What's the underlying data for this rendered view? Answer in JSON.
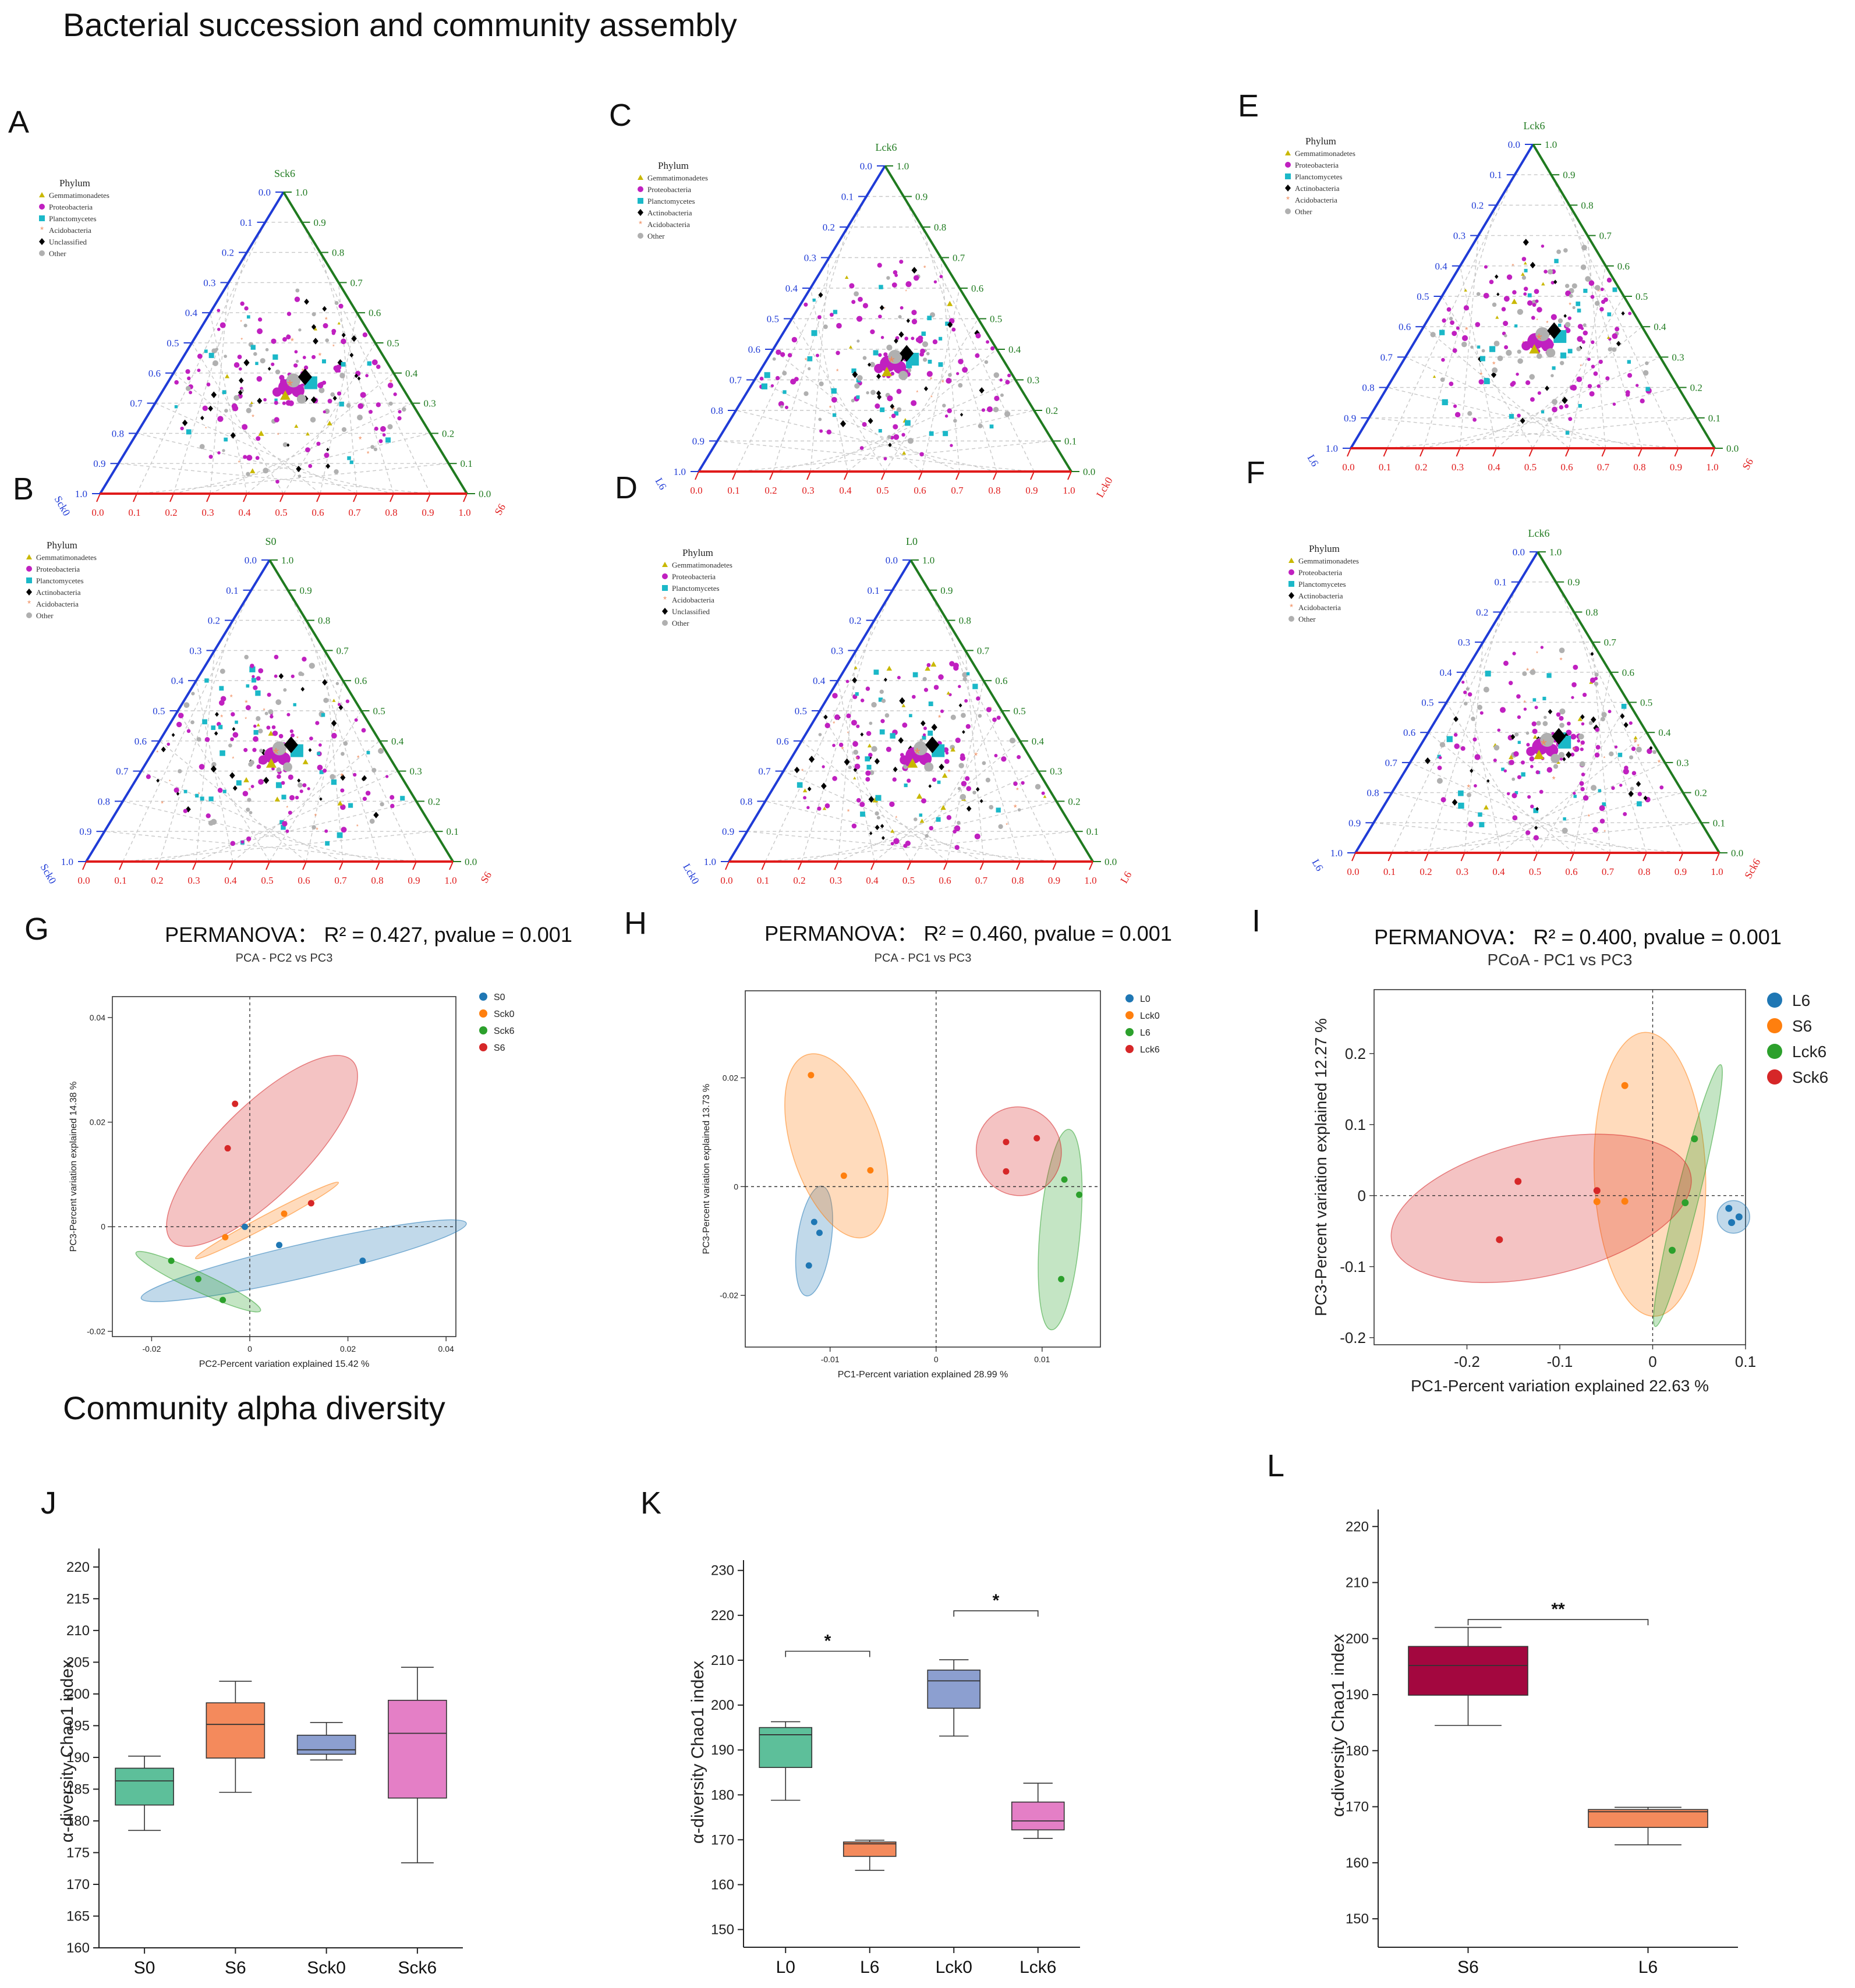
{
  "colors": {
    "blue_axis": "#1f3bd6",
    "green_axis": "#1f7a1f",
    "red_axis": "#e01b1b",
    "phylum": {
      "Gemmatimonadetes": "#c9b800",
      "Proteobacteria": "#c020c0",
      "Planctomycetes": "#1bb8c8",
      "Actinobacteria": "#000000",
      "Acidobacteria": "#f08a5a",
      "Unclassified": "#000000",
      "Other": "#b0b0b0"
    },
    "group": {
      "blue": "#1f77b4",
      "orange": "#ff7f0e",
      "green": "#2ca02c",
      "red": "#d62728"
    },
    "box_s0": "#5dbf9a",
    "box_s6": "#f48a5c",
    "box_sck0": "#8c9fd0",
    "box_sck6": "#e47fc6",
    "box_dark": "#a3073f"
  },
  "headings": {
    "section1": "Bacterial succession and community assembly",
    "section2": "Community alpha diversity"
  },
  "panel_letters": {
    "A": "A",
    "B": "B",
    "C": "C",
    "D": "D",
    "E": "E",
    "F": "F",
    "G": "G",
    "H": "H",
    "I": "I",
    "J": "J",
    "K": "K",
    "L": "L"
  },
  "chart_data": [
    {
      "panel": "A",
      "type": "scatter",
      "subtype": "ternary",
      "legend_title": "Phylum",
      "legend": [
        "Gemmatimonadetes",
        "Proteobacteria",
        "Planctomycetes",
        "Acidobacteria",
        "Unclassified",
        "Other"
      ],
      "axes": {
        "top": "Sck6",
        "left": "Sck0",
        "right": "S6"
      },
      "tick_labels": [
        "0.0",
        "0.1",
        "0.2",
        "0.3",
        "0.4",
        "0.5",
        "0.6",
        "0.7",
        "0.8",
        "0.9",
        "1.0"
      ]
    },
    {
      "panel": "B",
      "type": "scatter",
      "subtype": "ternary",
      "legend_title": "Phylum",
      "legend": [
        "Gemmatimonadetes",
        "Proteobacteria",
        "Planctomycetes",
        "Actinobacteria",
        "Acidobacteria",
        "Other"
      ],
      "axes": {
        "top": "S0",
        "left": "Sck0",
        "right": "S6"
      },
      "tick_labels": [
        "0.0",
        "0.1",
        "0.2",
        "0.3",
        "0.4",
        "0.5",
        "0.6",
        "0.7",
        "0.8",
        "0.9",
        "1.0"
      ]
    },
    {
      "panel": "C",
      "type": "scatter",
      "subtype": "ternary",
      "legend_title": "Phylum",
      "legend": [
        "Gemmatimonadetes",
        "Proteobacteria",
        "Planctomycetes",
        "Actinobacteria",
        "Acidobacteria",
        "Other"
      ],
      "axes": {
        "top": "Lck6",
        "left": "L6",
        "right": "Lck0"
      },
      "tick_labels": [
        "0.0",
        "0.1",
        "0.2",
        "0.3",
        "0.4",
        "0.5",
        "0.6",
        "0.7",
        "0.8",
        "0.9",
        "1.0"
      ]
    },
    {
      "panel": "D",
      "type": "scatter",
      "subtype": "ternary",
      "legend_title": "Phylum",
      "legend": [
        "Gemmatimonadetes",
        "Proteobacteria",
        "Planctomycetes",
        "Acidobacteria",
        "Unclassified",
        "Other"
      ],
      "axes": {
        "top": "L0",
        "left": "Lck0",
        "right": "L6"
      },
      "tick_labels": [
        "0.0",
        "0.1",
        "0.2",
        "0.3",
        "0.4",
        "0.5",
        "0.6",
        "0.7",
        "0.8",
        "0.9",
        "1.0"
      ]
    },
    {
      "panel": "E",
      "type": "scatter",
      "subtype": "ternary",
      "legend_title": "Phylum",
      "legend": [
        "Gemmatimonadetes",
        "Proteobacteria",
        "Planctomycetes",
        "Actinobacteria",
        "Acidobacteria",
        "Other"
      ],
      "axes": {
        "top": "Lck6",
        "left": "L6",
        "right": "S6"
      },
      "tick_labels": [
        "0.0",
        "0.1",
        "0.2",
        "0.3",
        "0.4",
        "0.5",
        "0.6",
        "0.7",
        "0.8",
        "0.9",
        "1.0"
      ]
    },
    {
      "panel": "F",
      "type": "scatter",
      "subtype": "ternary",
      "legend_title": "Phylum",
      "legend": [
        "Gemmatimonadetes",
        "Proteobacteria",
        "Planctomycetes",
        "Actinobacteria",
        "Acidobacteria",
        "Other"
      ],
      "axes": {
        "top": "Lck6",
        "left": "L6",
        "right": "Sck6"
      },
      "tick_labels": [
        "0.0",
        "0.1",
        "0.2",
        "0.3",
        "0.4",
        "0.5",
        "0.6",
        "0.7",
        "0.8",
        "0.9",
        "1.0"
      ]
    },
    {
      "panel": "G",
      "type": "scatter",
      "stat": "PERMANOVA： R² = 0.427, pvalue = 0.001",
      "title": "PCA - PC2 vs PC3",
      "xlabel": "PC2-Percent variation explained 15.42 %",
      "ylabel": "PC3-Percent variation explained 14.38 %",
      "xlim": [
        -0.028,
        0.042
      ],
      "ylim": [
        -0.021,
        0.044
      ],
      "xticks": [
        -0.02,
        0,
        0.02,
        0.04
      ],
      "xtick_labels": [
        "-0.02",
        "0",
        "0.02",
        "0.04"
      ],
      "yticks": [
        -0.02,
        0,
        0.02,
        0.04
      ],
      "ytick_labels": [
        "-0.02",
        "0",
        "0.02",
        "0.04"
      ],
      "legend": [
        {
          "name": "S0",
          "color": "blue"
        },
        {
          "name": "Sck0",
          "color": "orange"
        },
        {
          "name": "Sck6",
          "color": "green"
        },
        {
          "name": "S6",
          "color": "red"
        }
      ],
      "series": [
        {
          "name": "S0",
          "color": "blue",
          "points": [
            [
              -0.001,
              0.0
            ],
            [
              0.006,
              -0.0035
            ],
            [
              0.023,
              -0.0065
            ]
          ],
          "ellipse": {
            "cx": 0.011,
            "cy": -0.0065,
            "rx": 0.034,
            "ry": 0.0032,
            "angle": -13
          }
        },
        {
          "name": "Sck0",
          "color": "orange",
          "points": [
            [
              -0.005,
              -0.002
            ],
            [
              0.007,
              0.0025
            ],
            [
              0.0125,
              0.0045
            ]
          ],
          "ellipse": {
            "cx": 0.0035,
            "cy": 0.0012,
            "rx": 0.0165,
            "ry": 0.0011,
            "angle": -28
          }
        },
        {
          "name": "Sck6",
          "color": "green",
          "points": [
            [
              -0.016,
              -0.0065
            ],
            [
              -0.0105,
              -0.01
            ],
            [
              -0.0055,
              -0.014
            ]
          ],
          "ellipse": {
            "cx": -0.0105,
            "cy": -0.0105,
            "rx": 0.014,
            "ry": 0.0018,
            "angle": 25
          }
        },
        {
          "name": "S6",
          "color": "red",
          "points": [
            [
              -0.003,
              0.0235
            ],
            [
              -0.0045,
              0.015
            ],
            [
              0.0125,
              0.0045
            ]
          ],
          "ellipse": {
            "cx": 0.0025,
            "cy": 0.0145,
            "rx": 0.026,
            "ry": 0.0085,
            "angle": -45
          }
        }
      ]
    },
    {
      "panel": "H",
      "type": "scatter",
      "stat": "PERMANOVA： R² = 0.460, pvalue = 0.001",
      "title": "PCA - PC1 vs PC3",
      "xlabel": "PC1-Percent variation explained 28.99 %",
      "ylabel": "PC3-Percent variation explained 13.73 %",
      "xlim": [
        -0.018,
        0.0155
      ],
      "ylim": [
        -0.0295,
        0.036
      ],
      "xticks": [
        -0.01,
        0,
        0.01
      ],
      "xtick_labels": [
        "-0.01",
        "0",
        "0.01"
      ],
      "yticks": [
        -0.02,
        0,
        0.02
      ],
      "ytick_labels": [
        "-0.02",
        "0",
        "0.02"
      ],
      "legend": [
        {
          "name": "L0",
          "color": "blue"
        },
        {
          "name": "Lck0",
          "color": "orange"
        },
        {
          "name": "L6",
          "color": "green"
        },
        {
          "name": "Lck6",
          "color": "red"
        }
      ],
      "series": [
        {
          "name": "L0",
          "color": "blue",
          "points": [
            [
              -0.0115,
              -0.0065
            ],
            [
              -0.011,
              -0.0085
            ],
            [
              -0.012,
              -0.0145
            ]
          ],
          "ellipse": {
            "cx": -0.0115,
            "cy": -0.01,
            "rx": 0.0016,
            "ry": 0.0102,
            "angle": 8
          }
        },
        {
          "name": "Lck0",
          "color": "orange",
          "points": [
            [
              -0.0118,
              0.0205
            ],
            [
              -0.0087,
              0.002
            ],
            [
              -0.0062,
              0.003
            ]
          ],
          "ellipse": {
            "cx": -0.0094,
            "cy": 0.0075,
            "rx": 0.0042,
            "ry": 0.0176,
            "angle": -18
          }
        },
        {
          "name": "L6",
          "color": "green",
          "points": [
            [
              0.0121,
              0.0013
            ],
            [
              0.0135,
              -0.0015
            ],
            [
              0.0118,
              -0.017
            ]
          ],
          "ellipse": {
            "cx": 0.0117,
            "cy": -0.0079,
            "rx": 0.0019,
            "ry": 0.0185,
            "angle": 5
          }
        },
        {
          "name": "Lck6",
          "color": "red",
          "points": [
            [
              0.0066,
              0.0082
            ],
            [
              0.0095,
              0.0089
            ],
            [
              0.0066,
              0.0028
            ]
          ],
          "ellipse": {
            "cx": 0.0078,
            "cy": 0.0065,
            "rx": 0.0042,
            "ry": 0.0078,
            "angle": 75
          }
        }
      ]
    },
    {
      "panel": "I",
      "type": "scatter",
      "stat": "PERMANOVA： R² = 0.400, pvalue = 0.001",
      "title": "PCoA - PC1 vs PC3",
      "xlabel": "PC1-Percent variation explained 22.63 %",
      "ylabel": "PC3-Percent variation explained 12.27 %",
      "xlim": [
        -0.3,
        0.1
      ],
      "ylim": [
        -0.21,
        0.29
      ],
      "xticks": [
        -0.2,
        -0.1,
        0,
        0.1
      ],
      "xtick_labels": [
        "-0.2",
        "-0.1",
        "0",
        "0.1"
      ],
      "yticks": [
        -0.2,
        -0.1,
        0,
        0.1,
        0.2
      ],
      "ytick_labels": [
        "-0.2",
        "-0.1",
        "0",
        "0.1",
        "0.2"
      ],
      "legend": [
        {
          "name": "L6",
          "color": "blue"
        },
        {
          "name": "S6",
          "color": "orange"
        },
        {
          "name": "Lck6",
          "color": "green"
        },
        {
          "name": "Sck6",
          "color": "red"
        }
      ],
      "series": [
        {
          "name": "L6",
          "color": "blue",
          "points": [
            [
              0.082,
              -0.018
            ],
            [
              0.085,
              -0.038
            ],
            [
              0.093,
              -0.03
            ]
          ],
          "ellipse": {
            "cx": 0.087,
            "cy": -0.03,
            "rx": 0.0175,
            "ry": 0.023,
            "angle": 0
          }
        },
        {
          "name": "S6",
          "color": "orange",
          "points": [
            [
              -0.03,
              0.155
            ],
            [
              -0.03,
              -0.008
            ],
            [
              -0.06,
              -0.0085
            ]
          ],
          "ellipse": {
            "cx": -0.003,
            "cy": 0.03,
            "rx": 0.06,
            "ry": 0.2,
            "angle": -2
          }
        },
        {
          "name": "Lck6",
          "color": "green",
          "points": [
            [
              0.045,
              0.08
            ],
            [
              0.035,
              -0.01
            ],
            [
              0.021,
              -0.077
            ]
          ],
          "ellipse": {
            "cx": 0.038,
            "cy": 0.0,
            "rx": 0.012,
            "ry": 0.19,
            "angle": 14
          }
        },
        {
          "name": "Sck6",
          "color": "red",
          "points": [
            [
              -0.145,
              0.02
            ],
            [
              -0.06,
              0.007
            ],
            [
              -0.165,
              -0.062
            ]
          ],
          "ellipse": {
            "cx": -0.12,
            "cy": -0.018,
            "rx": 0.165,
            "ry": 0.095,
            "angle": -13
          }
        }
      ]
    },
    {
      "panel": "J",
      "type": "box",
      "ylabel": "α-diversity Chao1 index",
      "ylim": [
        160,
        222
      ],
      "yticks": [
        160,
        165,
        170,
        175,
        180,
        185,
        190,
        195,
        200,
        205,
        210,
        215,
        220
      ],
      "ytick_labels": [
        "160",
        "165",
        "170",
        "175",
        "180",
        "185",
        "190",
        "195",
        "200",
        "205",
        "210",
        "215",
        "220"
      ],
      "categories": [
        "S0",
        "S6",
        "Sck0",
        "Sck6"
      ],
      "boxes": [
        {
          "label": "S0",
          "min": 178.5,
          "q1": 182.5,
          "median": 186.3,
          "q3": 188.3,
          "max": 190.2,
          "color": "box_s0"
        },
        {
          "label": "S6",
          "min": 184.5,
          "q1": 189.9,
          "median": 195.2,
          "q3": 198.6,
          "max": 202,
          "color": "box_s6"
        },
        {
          "label": "Sck0",
          "min": 189.6,
          "q1": 190.5,
          "median": 191.2,
          "q3": 193.5,
          "max": 195.5,
          "color": "box_sck0"
        },
        {
          "label": "Sck6",
          "min": 173.4,
          "q1": 183.6,
          "median": 193.8,
          "q3": 199,
          "max": 204.2,
          "color": "box_sck6"
        }
      ],
      "significance": []
    },
    {
      "panel": "K",
      "type": "box",
      "ylabel": "α-diversity Chao1 index",
      "ylim": [
        148,
        231
      ],
      "yticks": [
        150,
        160,
        170,
        180,
        190,
        200,
        210,
        220,
        230
      ],
      "ytick_labels": [
        "150",
        "160",
        "170",
        "180",
        "190",
        "200",
        "210",
        "220",
        "230"
      ],
      "categories": [
        "L0",
        "L6",
        "Lck0",
        "Lck6"
      ],
      "boxes": [
        {
          "label": "L0",
          "min": 178.8,
          "q1": 186.1,
          "median": 193.4,
          "q3": 195,
          "max": 196.3,
          "color": "box_s0"
        },
        {
          "label": "L6",
          "min": 163.2,
          "q1": 166.3,
          "median": 169.1,
          "q3": 169.5,
          "max": 169.9,
          "color": "box_s6"
        },
        {
          "label": "Lck0",
          "min": 193.1,
          "q1": 199.3,
          "median": 205.4,
          "q3": 207.8,
          "max": 210.1,
          "color": "box_sck0"
        },
        {
          "label": "Lck6",
          "min": 170.3,
          "q1": 172.2,
          "median": 174.2,
          "q3": 178.4,
          "max": 182.6,
          "color": "box_sck6"
        }
      ],
      "significance": [
        {
          "from": 0,
          "to": 1,
          "y": 212,
          "label": "*"
        },
        {
          "from": 2,
          "to": 3,
          "y": 221,
          "label": "*"
        }
      ]
    },
    {
      "panel": "L",
      "type": "box",
      "ylabel": "α-diversity Chao1 index",
      "ylim": [
        147,
        222
      ],
      "yticks": [
        150,
        160,
        170,
        180,
        190,
        200,
        210,
        220
      ],
      "ytick_labels": [
        "150",
        "160",
        "170",
        "180",
        "190",
        "200",
        "210",
        "220"
      ],
      "categories": [
        "S6",
        "L6"
      ],
      "boxes": [
        {
          "label": "S6",
          "min": 184.5,
          "q1": 189.9,
          "median": 195.2,
          "q3": 198.6,
          "max": 202,
          "color": "box_dark"
        },
        {
          "label": "L6",
          "min": 163.2,
          "q1": 166.3,
          "median": 169.1,
          "q3": 169.5,
          "max": 169.9,
          "color": "box_s6"
        }
      ],
      "significance": [
        {
          "from": 0,
          "to": 1,
          "y": 203.4,
          "label": "**"
        }
      ]
    }
  ]
}
